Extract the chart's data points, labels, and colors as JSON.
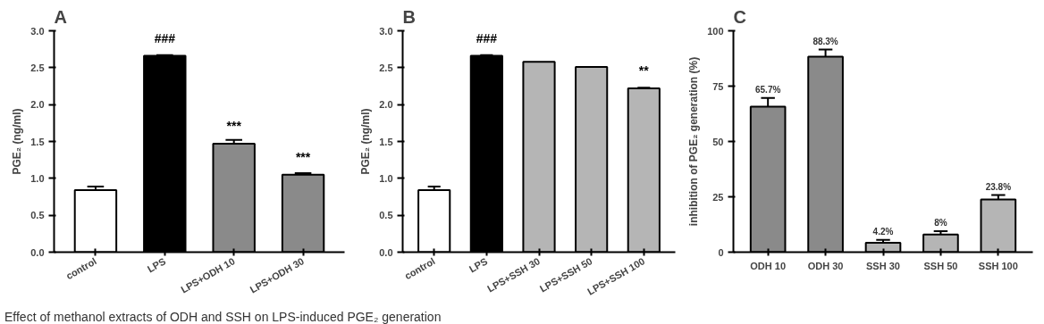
{
  "chart_data": [
    {
      "type": "bar",
      "title": "A",
      "ylabel": "PGE₂ (ng/ml)",
      "categories": [
        "control",
        "LPS",
        "LPS+ODH 10",
        "LPS+ODH 30"
      ],
      "values": [
        0.84,
        2.66,
        1.47,
        1.05
      ],
      "errors": [
        [
          0.84,
          0.89
        ],
        [
          2.66,
          2.67
        ],
        [
          1.47,
          1.52
        ],
        [
          1.05,
          1.07
        ]
      ],
      "colors": [
        "#ffffff",
        "#000000",
        "#8a8a8a",
        "#8a8a8a"
      ],
      "ylim": [
        0,
        3.0
      ],
      "yticks": [
        {
          "value": 0,
          "label": "0.0"
        },
        0.5,
        {
          "value": 1,
          "label": "1.0"
        },
        1.5,
        {
          "value": 2,
          "label": "2.0"
        },
        2.5,
        {
          "value": 3,
          "label": "3.0"
        }
      ],
      "grid": false,
      "annotations": [
        {
          "text": "###",
          "x": "LPS",
          "y": 2.66
        },
        {
          "text": "***",
          "x": "LPS+ODH 10",
          "y": 1.47
        },
        {
          "text": "***",
          "x": "LPS+ODH 30",
          "y": 1.05
        },
        "Effect of methanol extracts of ODH and SSH on LPS-induced PGE₂ generation"
      ]
    },
    {
      "type": "bar",
      "title": "B",
      "ylabel": "PGE₂ (ng/ml)",
      "categories": [
        "control",
        "LPS",
        "LPS+SSH 30",
        "LPS+SSH 50",
        "LPS+SSH 100"
      ],
      "values": [
        0.84,
        2.66,
        2.58,
        2.51,
        2.22
      ],
      "errors": [
        [
          0.84,
          0.89
        ],
        [
          2.66,
          2.67
        ],
        null,
        null,
        [
          2.22,
          2.23
        ]
      ],
      "colors": [
        "#ffffff",
        "#000000",
        "#b5b5b5",
        "#b5b5b5",
        "#b5b5b5"
      ],
      "ylim": [
        0,
        3.0
      ],
      "yticks": [
        {
          "value": 0,
          "label": "0.0"
        },
        0.5,
        {
          "value": 1,
          "label": "1.0"
        },
        1.5,
        {
          "value": 2,
          "label": "2.0"
        },
        2.5,
        {
          "value": 3,
          "label": "3.0"
        }
      ],
      "grid": false,
      "annotations": [
        {
          "text": "###",
          "x": "LPS",
          "y": 2.66
        },
        {
          "text": "**",
          "x": "LPS+SSH 100",
          "y": 2.22
        }
      ]
    },
    {
      "type": "bar",
      "title": "C",
      "ylabel": "inhibition of PGE₂ generation (%)",
      "categories": [
        "ODH 10",
        "ODH 30",
        "SSH 30",
        "SSH 50",
        "SSH 100"
      ],
      "values": [
        65.7,
        88.3,
        4.2,
        8,
        23.8
      ],
      "errors": [
        [
          65.7,
          69.7
        ],
        [
          88.3,
          91.5
        ],
        [
          4.2,
          5.5
        ],
        [
          8,
          9.5
        ],
        [
          23.8,
          25.8
        ]
      ],
      "colors": [
        "#8a8a8a",
        "#8a8a8a",
        "#b5b5b5",
        "#b5b5b5",
        "#b5b5b5"
      ],
      "value_labels": [
        "65.7%",
        "88.3%",
        "4.2%",
        "8%",
        "23.8%"
      ],
      "ylim": [
        0,
        100
      ],
      "yticks": [
        0,
        25,
        50,
        75,
        100
      ],
      "grid": false
    }
  ]
}
